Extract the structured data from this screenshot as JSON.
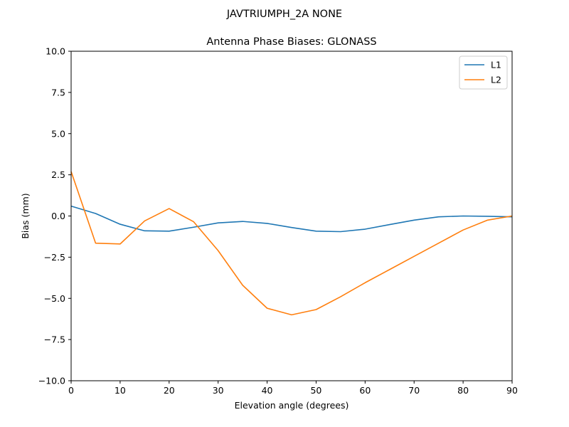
{
  "figure": {
    "suptitle": "JAVTRIUMPH_2A   NONE"
  },
  "chart_data": {
    "type": "line",
    "title": "Antenna Phase Biases: GLONASS",
    "xlabel": "Elevation angle (degrees)",
    "ylabel": "Bias (mm)",
    "xlim": [
      0,
      90
    ],
    "ylim": [
      -10,
      10
    ],
    "xticks": [
      0,
      10,
      20,
      30,
      40,
      50,
      60,
      70,
      80,
      90
    ],
    "xtick_labels": [
      "0",
      "10",
      "20",
      "30",
      "40",
      "50",
      "60",
      "70",
      "80",
      "90"
    ],
    "yticks": [
      -10,
      -7.5,
      -5,
      -2.5,
      0,
      2.5,
      5,
      7.5,
      10
    ],
    "ytick_labels": [
      "−10.0",
      "−7.5",
      "−5.0",
      "−2.5",
      "0.0",
      "2.5",
      "5.0",
      "7.5",
      "10.0"
    ],
    "grid": false,
    "legend_position": "upper right",
    "x": [
      0,
      5,
      10,
      15,
      20,
      25,
      30,
      35,
      40,
      45,
      50,
      55,
      60,
      65,
      70,
      75,
      80,
      85,
      90
    ],
    "series": [
      {
        "name": "L1",
        "color": "#1f77b4",
        "values": [
          0.6,
          0.15,
          -0.5,
          -0.9,
          -0.92,
          -0.68,
          -0.42,
          -0.33,
          -0.45,
          -0.7,
          -0.92,
          -0.95,
          -0.8,
          -0.52,
          -0.25,
          -0.05,
          0.0,
          -0.02,
          -0.05
        ]
      },
      {
        "name": "L2",
        "color": "#ff7f0e",
        "values": [
          2.7,
          -1.65,
          -1.7,
          -0.3,
          0.45,
          -0.35,
          -2.1,
          -4.2,
          -5.6,
          -6.0,
          -5.68,
          -4.9,
          -4.05,
          -3.25,
          -2.45,
          -1.65,
          -0.85,
          -0.25,
          0.0
        ]
      }
    ]
  }
}
